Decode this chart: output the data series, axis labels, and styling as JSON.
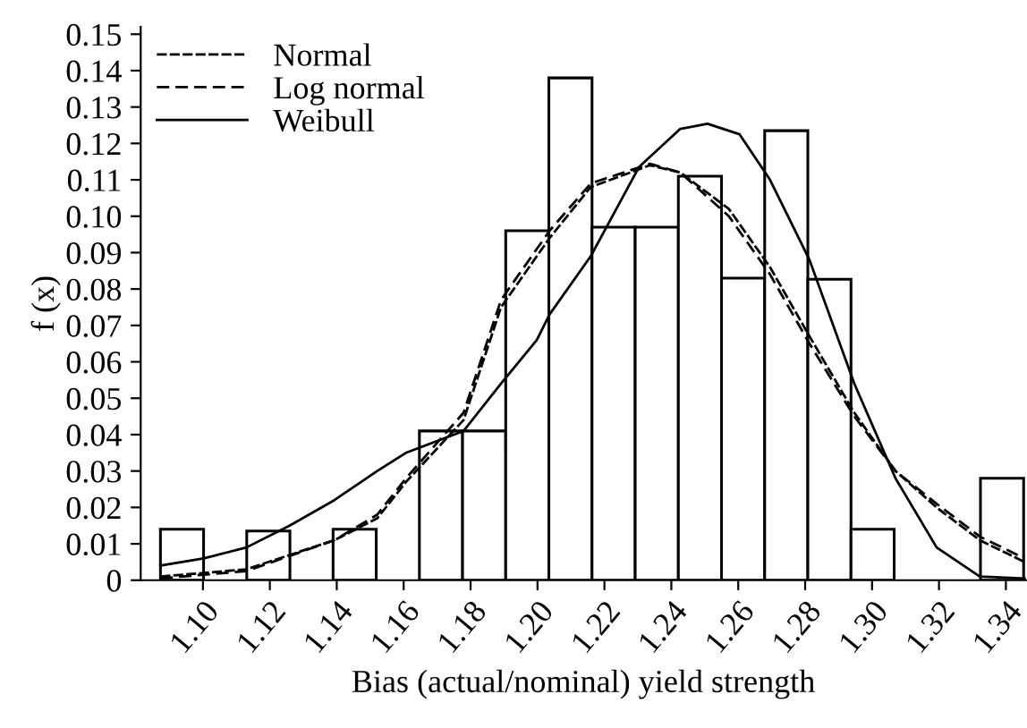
{
  "chart_data": {
    "type": "histogram",
    "xlabel": "Bias (actual/nominal) yield strength",
    "ylabel": "f (x)",
    "bins": [
      1.0873,
      1.1002,
      1.1131,
      1.126,
      1.1389,
      1.1518,
      1.1647,
      1.1776,
      1.1905,
      1.2034,
      1.2163,
      1.2292,
      1.2421,
      1.255,
      1.2679,
      1.2808,
      1.2937,
      1.3066,
      1.3195,
      1.3324,
      1.3453
    ],
    "values": [
      0.014,
      0,
      0.0135,
      0,
      0.014,
      0,
      0.041,
      0.041,
      0.096,
      0.138,
      0.097,
      0.097,
      0.111,
      0.083,
      0.1235,
      0.0827,
      0.014,
      0,
      0,
      0.028
    ],
    "color": "#ffffff",
    "series": [
      {
        "name": "Normal",
        "type": "line",
        "line_style": "dashed",
        "color": "#000000",
        "x": [
          1.0873,
          1.113,
          1.1393,
          1.1521,
          1.1607,
          1.1779,
          1.1891,
          1.2036,
          1.2159,
          1.2336,
          1.2427,
          1.2572,
          1.2695,
          1.2813,
          1.2947,
          1.307,
          1.3193,
          1.3322,
          1.3456
        ],
        "values": [
          0.001,
          0.003,
          0.011,
          0.017,
          0.027,
          0.044,
          0.075,
          0.094,
          0.108,
          0.114,
          0.112,
          0.102,
          0.086,
          0.067,
          0.046,
          0.03,
          0.02,
          0.011,
          0.005
        ]
      },
      {
        "name": "Log normal",
        "type": "line",
        "line_style": "dashed",
        "color": "#000000",
        "x": [
          1.0873,
          1.113,
          1.1393,
          1.1521,
          1.1607,
          1.1779,
          1.1891,
          1.2036,
          1.2159,
          1.2336,
          1.2427,
          1.2572,
          1.2695,
          1.2813,
          1.2947,
          1.307,
          1.3193,
          1.3322,
          1.3456
        ],
        "values": [
          0.0005,
          0.0025,
          0.011,
          0.018,
          0.028,
          0.046,
          0.077,
          0.096,
          0.109,
          0.1144,
          0.112,
          0.1,
          0.084,
          0.065,
          0.045,
          0.03,
          0.021,
          0.012,
          0.006
        ]
      },
      {
        "name": "Weibull",
        "type": "line",
        "line_style": "solid",
        "color": "#000000",
        "x": [
          1.0873,
          1.1002,
          1.113,
          1.1259,
          1.1393,
          1.1521,
          1.1607,
          1.1779,
          1.1891,
          1.1998,
          1.2036,
          1.2159,
          1.2304,
          1.2427,
          1.2508,
          1.2604,
          1.2695,
          1.2813,
          1.2947,
          1.307,
          1.3193,
          1.3322,
          1.3456
        ],
        "values": [
          0.004,
          0.006,
          0.009,
          0.015,
          0.022,
          0.03,
          0.035,
          0.041,
          0.054,
          0.066,
          0.073,
          0.089,
          0.1136,
          0.124,
          0.1254,
          0.1225,
          0.11,
          0.088,
          0.054,
          0.028,
          0.009,
          0.001,
          0.0005
        ]
      }
    ],
    "xlim": [
      1.0814,
      1.346
    ],
    "ylim": [
      0,
      0.152
    ],
    "xticks": [
      {
        "value": 1.1,
        "label": "1.10"
      },
      1.12,
      1.14,
      1.16,
      1.18,
      {
        "value": 1.2,
        "label": "1.20"
      },
      1.22,
      1.24,
      1.26,
      1.28,
      {
        "value": 1.3,
        "label": "1.30"
      },
      1.32,
      1.34
    ],
    "yticks": [
      0,
      0.01,
      0.02,
      0.03,
      0.04,
      0.05,
      0.06,
      0.07,
      0.08,
      0.09,
      {
        "value": 0.1,
        "label": "0.10"
      },
      0.11,
      0.12,
      0.13,
      0.14,
      0.15
    ],
    "legend": "top left",
    "grid": false
  }
}
